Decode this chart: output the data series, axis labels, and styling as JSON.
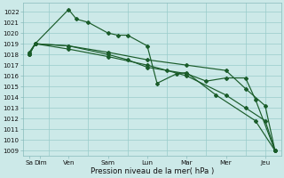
{
  "xlabel": "Pression niveau de la mer( hPa )",
  "background_color": "#cce9e8",
  "grid_color": "#99ccca",
  "line_color": "#1a5c2a",
  "ylim_min": 1008.5,
  "ylim_max": 1022.8,
  "yticks": [
    1009,
    1010,
    1011,
    1012,
    1013,
    1014,
    1015,
    1016,
    1017,
    1018,
    1019,
    1020,
    1021,
    1022
  ],
  "xtick_labels": [
    "Sa​Dim",
    "Ven",
    "Sam",
    "Lun",
    "Mar",
    "Mer",
    "Jeu"
  ],
  "xtick_positions": [
    0,
    2,
    4,
    6,
    8,
    10,
    12
  ],
  "xlim_min": -0.3,
  "xlim_max": 12.8,
  "series1_x": [
    0,
    0.3,
    2.0,
    2.4,
    3.0,
    4.0,
    4.5,
    5.0,
    6.0,
    6.5,
    7.5,
    8.0,
    9.5,
    11.5,
    12.5
  ],
  "series1_y": [
    1018.0,
    1019.0,
    1022.2,
    1021.3,
    1021.0,
    1020.0,
    1019.8,
    1019.8,
    1018.8,
    1015.3,
    1016.2,
    1016.3,
    1014.2,
    1011.8,
    1009.0
  ],
  "series2_x": [
    0,
    0.3,
    2.0,
    4.0,
    5.0,
    6.0,
    7.0,
    8.0,
    9.0,
    10.0,
    11.0,
    11.5,
    12.5
  ],
  "series2_y": [
    1018.2,
    1019.0,
    1018.8,
    1018.0,
    1017.5,
    1016.8,
    1016.5,
    1016.2,
    1015.5,
    1015.8,
    1015.8,
    1013.8,
    1009.0
  ],
  "series3_x": [
    0,
    0.3,
    2.0,
    4.0,
    6.0,
    8.0,
    10.0,
    11.0,
    12.0,
    12.5
  ],
  "series3_y": [
    1018.0,
    1019.0,
    1018.8,
    1018.2,
    1017.5,
    1017.0,
    1016.5,
    1014.8,
    1013.2,
    1009.0
  ],
  "series4_x": [
    0,
    0.3,
    2.0,
    4.0,
    6.0,
    8.0,
    10.0,
    11.0,
    12.0,
    12.5
  ],
  "series4_y": [
    1018.0,
    1019.0,
    1018.5,
    1017.8,
    1017.0,
    1016.0,
    1014.2,
    1013.0,
    1011.8,
    1009.0
  ],
  "vline_positions": [
    1,
    3,
    5,
    7,
    9,
    11,
    12
  ],
  "ytick_fontsize": 5.0,
  "xtick_fontsize": 5.2,
  "xlabel_fontsize": 6.2,
  "linewidth": 0.85,
  "markersize": 2.0
}
